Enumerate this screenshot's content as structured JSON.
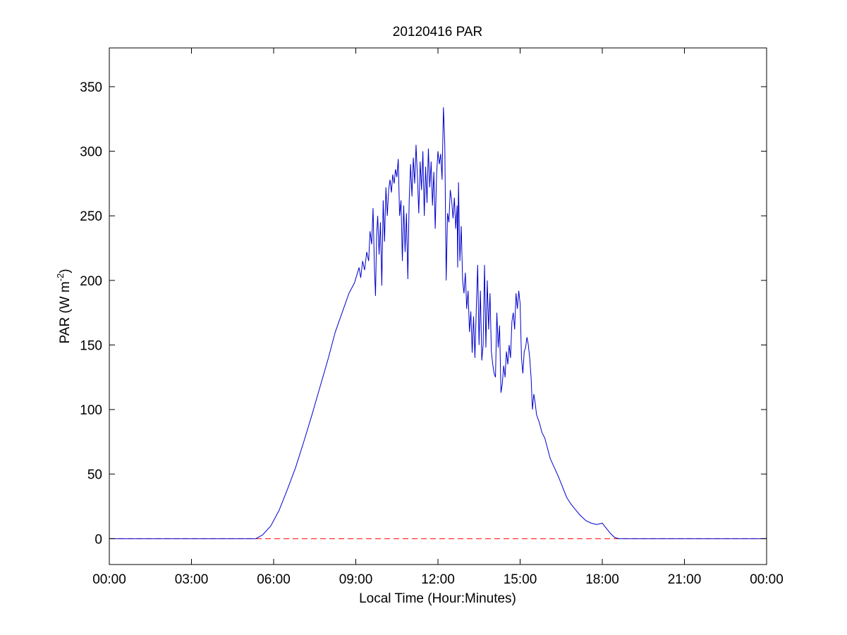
{
  "chart_data": {
    "type": "line",
    "title": "20120416 PAR",
    "xlabel": "Local Time (Hour:Minutes)",
    "ylabel": {
      "prefix": "PAR (W m",
      "superscript": "-2",
      "suffix": ")"
    },
    "xlim": [
      0,
      24
    ],
    "ylim": [
      -20,
      380
    ],
    "x_unit": "hours",
    "xticks": [
      0,
      3,
      6,
      9,
      12,
      15,
      18,
      21,
      24
    ],
    "xtick_labels": [
      "00:00",
      "03:00",
      "06:00",
      "09:00",
      "12:00",
      "15:00",
      "18:00",
      "21:00",
      "00:00"
    ],
    "yticks": [
      0,
      50,
      100,
      150,
      200,
      250,
      300,
      350
    ],
    "ytick_labels": [
      "0",
      "50",
      "100",
      "150",
      "200",
      "250",
      "300",
      "350"
    ],
    "grid": false,
    "series": [
      {
        "style": "solid",
        "color": "#0000cc",
        "points": [
          [
            0.0,
            0
          ],
          [
            5.35,
            0
          ],
          [
            5.6,
            3
          ],
          [
            5.9,
            10
          ],
          [
            6.2,
            22
          ],
          [
            6.5,
            38
          ],
          [
            6.8,
            55
          ],
          [
            7.1,
            75
          ],
          [
            7.4,
            96
          ],
          [
            7.7,
            118
          ],
          [
            8.0,
            140
          ],
          [
            8.25,
            160
          ],
          [
            8.5,
            175
          ],
          [
            8.75,
            190
          ],
          [
            8.95,
            198
          ],
          [
            9.05,
            205
          ],
          [
            9.12,
            210
          ],
          [
            9.18,
            202
          ],
          [
            9.25,
            215
          ],
          [
            9.32,
            208
          ],
          [
            9.4,
            222
          ],
          [
            9.47,
            215
          ],
          [
            9.52,
            238
          ],
          [
            9.58,
            228
          ],
          [
            9.63,
            256
          ],
          [
            9.68,
            210
          ],
          [
            9.72,
            188
          ],
          [
            9.76,
            235
          ],
          [
            9.8,
            250
          ],
          [
            9.85,
            220
          ],
          [
            9.9,
            245
          ],
          [
            9.95,
            196
          ],
          [
            10.0,
            262
          ],
          [
            10.05,
            230
          ],
          [
            10.1,
            272
          ],
          [
            10.15,
            250
          ],
          [
            10.2,
            270
          ],
          [
            10.25,
            278
          ],
          [
            10.3,
            268
          ],
          [
            10.35,
            282
          ],
          [
            10.4,
            275
          ],
          [
            10.45,
            286
          ],
          [
            10.5,
            280
          ],
          [
            10.55,
            294
          ],
          [
            10.6,
            250
          ],
          [
            10.65,
            262
          ],
          [
            10.7,
            215
          ],
          [
            10.75,
            258
          ],
          [
            10.8,
            222
          ],
          [
            10.85,
            252
          ],
          [
            10.9,
            201
          ],
          [
            10.95,
            262
          ],
          [
            11.0,
            290
          ],
          [
            11.05,
            265
          ],
          [
            11.1,
            295
          ],
          [
            11.15,
            275
          ],
          [
            11.2,
            305
          ],
          [
            11.25,
            280
          ],
          [
            11.3,
            252
          ],
          [
            11.35,
            292
          ],
          [
            11.4,
            270
          ],
          [
            11.45,
            300
          ],
          [
            11.5,
            250
          ],
          [
            11.55,
            288
          ],
          [
            11.6,
            260
          ],
          [
            11.65,
            302
          ],
          [
            11.7,
            272
          ],
          [
            11.75,
            292
          ],
          [
            11.8,
            258
          ],
          [
            11.85,
            284
          ],
          [
            11.9,
            240
          ],
          [
            11.95,
            282
          ],
          [
            12.0,
            300
          ],
          [
            12.05,
            290
          ],
          [
            12.1,
            298
          ],
          [
            12.15,
            278
          ],
          [
            12.2,
            334
          ],
          [
            12.25,
            305
          ],
          [
            12.3,
            200
          ],
          [
            12.35,
            252
          ],
          [
            12.4,
            245
          ],
          [
            12.45,
            270
          ],
          [
            12.5,
            262
          ],
          [
            12.55,
            248
          ],
          [
            12.6,
            264
          ],
          [
            12.65,
            240
          ],
          [
            12.7,
            258
          ],
          [
            12.72,
            210
          ],
          [
            12.75,
            276
          ],
          [
            12.8,
            215
          ],
          [
            12.85,
            242
          ],
          [
            12.9,
            200
          ],
          [
            12.95,
            190
          ],
          [
            13.0,
            206
          ],
          [
            13.05,
            178
          ],
          [
            13.1,
            192
          ],
          [
            13.15,
            160
          ],
          [
            13.2,
            176
          ],
          [
            13.25,
            144
          ],
          [
            13.3,
            172
          ],
          [
            13.35,
            140
          ],
          [
            13.4,
            178
          ],
          [
            13.45,
            212
          ],
          [
            13.5,
            150
          ],
          [
            13.55,
            192
          ],
          [
            13.6,
            138
          ],
          [
            13.65,
            150
          ],
          [
            13.7,
            212
          ],
          [
            13.75,
            148
          ],
          [
            13.8,
            200
          ],
          [
            13.85,
            162
          ],
          [
            13.9,
            190
          ],
          [
            13.95,
            145
          ],
          [
            14.0,
            135
          ],
          [
            14.05,
            128
          ],
          [
            14.1,
            125
          ],
          [
            14.15,
            175
          ],
          [
            14.2,
            148
          ],
          [
            14.25,
            165
          ],
          [
            14.3,
            113
          ],
          [
            14.35,
            120
          ],
          [
            14.4,
            134
          ],
          [
            14.45,
            125
          ],
          [
            14.5,
            145
          ],
          [
            14.55,
            135
          ],
          [
            14.6,
            150
          ],
          [
            14.65,
            140
          ],
          [
            14.7,
            168
          ],
          [
            14.75,
            175
          ],
          [
            14.8,
            162
          ],
          [
            14.85,
            190
          ],
          [
            14.9,
            178
          ],
          [
            14.95,
            192
          ],
          [
            15.0,
            182
          ],
          [
            15.05,
            140
          ],
          [
            15.1,
            128
          ],
          [
            15.15,
            145
          ],
          [
            15.2,
            148
          ],
          [
            15.25,
            156
          ],
          [
            15.3,
            150
          ],
          [
            15.35,
            140
          ],
          [
            15.4,
            125
          ],
          [
            15.45,
            100
          ],
          [
            15.5,
            112
          ],
          [
            15.55,
            105
          ],
          [
            15.6,
            96
          ],
          [
            15.7,
            90
          ],
          [
            15.8,
            82
          ],
          [
            15.9,
            78
          ],
          [
            16.0,
            70
          ],
          [
            16.1,
            62
          ],
          [
            16.25,
            55
          ],
          [
            16.4,
            48
          ],
          [
            16.55,
            40
          ],
          [
            16.7,
            32
          ],
          [
            16.85,
            27
          ],
          [
            17.0,
            23
          ],
          [
            17.2,
            18
          ],
          [
            17.4,
            14
          ],
          [
            17.6,
            12
          ],
          [
            17.8,
            11
          ],
          [
            18.0,
            12
          ],
          [
            18.15,
            8
          ],
          [
            18.3,
            4
          ],
          [
            18.45,
            1
          ],
          [
            18.6,
            0
          ],
          [
            24.0,
            0
          ]
        ]
      },
      {
        "style": "dashed",
        "color": "#ff0000",
        "points": [
          [
            0,
            0
          ],
          [
            24,
            0
          ]
        ]
      }
    ]
  }
}
